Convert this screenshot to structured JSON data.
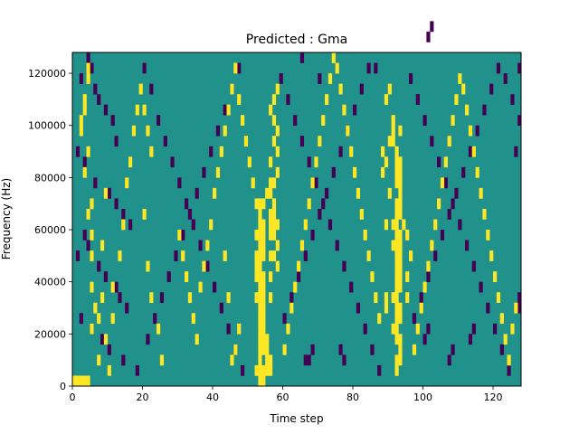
{
  "chart_data": {
    "type": "heatmap",
    "title": "Predicted : Gma",
    "xlabel": "Time step",
    "ylabel": "Frequency (Hz)",
    "xlim": [
      0,
      128
    ],
    "ylim": [
      0,
      128000
    ],
    "xticks": [
      0,
      20,
      40,
      60,
      80,
      100,
      120
    ],
    "yticks": [
      0,
      20000,
      40000,
      60000,
      80000,
      100000,
      120000
    ],
    "grid": false,
    "legend": "none",
    "colors": {
      "background": "#21918c",
      "low": "#440154",
      "high": "#fde725"
    },
    "cell_width_steps": 1,
    "cell_height_hz": 4000,
    "high_cells": [
      [
        0,
        0
      ],
      [
        1,
        0
      ],
      [
        2,
        0
      ],
      [
        3,
        0
      ],
      [
        4,
        0
      ],
      [
        53,
        0
      ],
      [
        54,
        0
      ],
      [
        52,
        1
      ],
      [
        53,
        1
      ],
      [
        54,
        1
      ],
      [
        55,
        1
      ],
      [
        56,
        1
      ],
      [
        56,
        2
      ],
      [
        55,
        2
      ],
      [
        53,
        2
      ],
      [
        53,
        3
      ],
      [
        54,
        3
      ],
      [
        55,
        3
      ],
      [
        53,
        4
      ],
      [
        54,
        4
      ],
      [
        55,
        4
      ],
      [
        53,
        5
      ],
      [
        54,
        5
      ],
      [
        53,
        6
      ],
      [
        54,
        6
      ],
      [
        53,
        7
      ],
      [
        54,
        7
      ],
      [
        52,
        8
      ],
      [
        53,
        8
      ],
      [
        54,
        8
      ],
      [
        53,
        9
      ],
      [
        54,
        9
      ],
      [
        52,
        10
      ],
      [
        53,
        10
      ],
      [
        54,
        10
      ],
      [
        52,
        11
      ],
      [
        53,
        11
      ],
      [
        52,
        12
      ],
      [
        53,
        12
      ],
      [
        53,
        13
      ],
      [
        54,
        13
      ],
      [
        52,
        14
      ],
      [
        53,
        14
      ],
      [
        54,
        14
      ],
      [
        53,
        15
      ],
      [
        54,
        15
      ],
      [
        53,
        16
      ],
      [
        52,
        17
      ],
      [
        53,
        17
      ],
      [
        54,
        17
      ],
      [
        56,
        14
      ],
      [
        57,
        14
      ],
      [
        56,
        15
      ],
      [
        57,
        15
      ],
      [
        58,
        15
      ],
      [
        56,
        16
      ],
      [
        57,
        16
      ],
      [
        54,
        12
      ],
      [
        56,
        12
      ],
      [
        55,
        18
      ],
      [
        56,
        18
      ],
      [
        56,
        19
      ],
      [
        57,
        19
      ],
      [
        58,
        20
      ],
      [
        56,
        21
      ],
      [
        58,
        22
      ],
      [
        57,
        23
      ],
      [
        58,
        24
      ],
      [
        57,
        25
      ],
      [
        56,
        26
      ],
      [
        57,
        27
      ],
      [
        58,
        28
      ],
      [
        56,
        8
      ],
      [
        56,
        10
      ],
      [
        57,
        12
      ],
      [
        58,
        11
      ],
      [
        58,
        13
      ],
      [
        57,
        17
      ],
      [
        92,
        1
      ],
      [
        92,
        2
      ],
      [
        93,
        2
      ],
      [
        93,
        3
      ],
      [
        92,
        4
      ],
      [
        93,
        4
      ],
      [
        91,
        5
      ],
      [
        92,
        5
      ],
      [
        92,
        6
      ],
      [
        93,
        6
      ],
      [
        92,
        7
      ],
      [
        93,
        7
      ],
      [
        91,
        8
      ],
      [
        92,
        8
      ],
      [
        92,
        9
      ],
      [
        93,
        9
      ],
      [
        92,
        10
      ],
      [
        93,
        10
      ],
      [
        92,
        11
      ],
      [
        93,
        11
      ],
      [
        92,
        12
      ],
      [
        93,
        12
      ],
      [
        91,
        13
      ],
      [
        92,
        13
      ],
      [
        93,
        13
      ],
      [
        92,
        14
      ],
      [
        93,
        14
      ],
      [
        94,
        15
      ],
      [
        92,
        15
      ],
      [
        91,
        15
      ],
      [
        92,
        16
      ],
      [
        93,
        16
      ],
      [
        92,
        17
      ],
      [
        93,
        17
      ],
      [
        93,
        18
      ],
      [
        92,
        19
      ],
      [
        93,
        19
      ],
      [
        92,
        20
      ],
      [
        93,
        20
      ],
      [
        92,
        21
      ],
      [
        93,
        21
      ],
      [
        92,
        22
      ],
      [
        91,
        23
      ],
      [
        91,
        24
      ],
      [
        91,
        25
      ],
      [
        89,
        27
      ],
      [
        90,
        28
      ],
      [
        89,
        7
      ],
      [
        89,
        8
      ],
      [
        88,
        20
      ],
      [
        89,
        21
      ],
      [
        88,
        22
      ],
      [
        90,
        23
      ],
      [
        93,
        24
      ],
      [
        89,
        15
      ],
      [
        90,
        18
      ],
      [
        95,
        14
      ],
      [
        96,
        12
      ],
      [
        95,
        10
      ],
      [
        95,
        8
      ],
      [
        4,
        29
      ],
      [
        4,
        30
      ],
      [
        3,
        27
      ],
      [
        2,
        25
      ],
      [
        2,
        24
      ],
      [
        3,
        26
      ],
      [
        4,
        22
      ],
      [
        3,
        20
      ],
      [
        5,
        17
      ],
      [
        4,
        16
      ],
      [
        5,
        14
      ],
      [
        5,
        12
      ],
      [
        5,
        9
      ],
      [
        6,
        7
      ],
      [
        5,
        5
      ],
      [
        7,
        6
      ],
      [
        8,
        8
      ],
      [
        7,
        2
      ],
      [
        10,
        1
      ],
      [
        9,
        4
      ],
      [
        8,
        13
      ],
      [
        9,
        18
      ],
      [
        11,
        6
      ],
      [
        11,
        9
      ],
      [
        13,
        12
      ],
      [
        14,
        15
      ],
      [
        15,
        19
      ],
      [
        16,
        21
      ],
      [
        17,
        24
      ],
      [
        18,
        26
      ],
      [
        19,
        28
      ],
      [
        20,
        26
      ],
      [
        21,
        24
      ],
      [
        22,
        22
      ],
      [
        20,
        16
      ],
      [
        21,
        11
      ],
      [
        22,
        8
      ],
      [
        24,
        5
      ],
      [
        25,
        2
      ],
      [
        30,
        14
      ],
      [
        31,
        12
      ],
      [
        32,
        10
      ],
      [
        33,
        8
      ],
      [
        34,
        6
      ],
      [
        35,
        4
      ],
      [
        36,
        9
      ],
      [
        37,
        11
      ],
      [
        38,
        13
      ],
      [
        39,
        15
      ],
      [
        40,
        18
      ],
      [
        41,
        20
      ],
      [
        42,
        22
      ],
      [
        43,
        24
      ],
      [
        44,
        26
      ],
      [
        45,
        28
      ],
      [
        46,
        30
      ],
      [
        47,
        27
      ],
      [
        48,
        25
      ],
      [
        49,
        23
      ],
      [
        50,
        21
      ],
      [
        51,
        19
      ],
      [
        45,
        2
      ],
      [
        46,
        3
      ],
      [
        47,
        5
      ],
      [
        44,
        8
      ],
      [
        43,
        12
      ],
      [
        60,
        3
      ],
      [
        61,
        5
      ],
      [
        62,
        7
      ],
      [
        63,
        9
      ],
      [
        64,
        11
      ],
      [
        65,
        13
      ],
      [
        66,
        15
      ],
      [
        67,
        17
      ],
      [
        68,
        19
      ],
      [
        69,
        21
      ],
      [
        70,
        23
      ],
      [
        71,
        25
      ],
      [
        72,
        27
      ],
      [
        73,
        29
      ],
      [
        74,
        31
      ],
      [
        75,
        30
      ],
      [
        76,
        28
      ],
      [
        77,
        26
      ],
      [
        78,
        24
      ],
      [
        79,
        22
      ],
      [
        80,
        20
      ],
      [
        81,
        18
      ],
      [
        82,
        16
      ],
      [
        83,
        14
      ],
      [
        84,
        12
      ],
      [
        85,
        10
      ],
      [
        86,
        8
      ],
      [
        87,
        6
      ],
      [
        97,
        3
      ],
      [
        98,
        5
      ],
      [
        99,
        7
      ],
      [
        100,
        9
      ],
      [
        101,
        11
      ],
      [
        102,
        13
      ],
      [
        103,
        15
      ],
      [
        104,
        17
      ],
      [
        105,
        19
      ],
      [
        106,
        21
      ],
      [
        107,
        23
      ],
      [
        108,
        25
      ],
      [
        109,
        27
      ],
      [
        110,
        29
      ],
      [
        111,
        28
      ],
      [
        112,
        26
      ],
      [
        113,
        24
      ],
      [
        114,
        22
      ],
      [
        115,
        20
      ],
      [
        116,
        18
      ],
      [
        117,
        16
      ],
      [
        118,
        14
      ],
      [
        119,
        12
      ],
      [
        120,
        10
      ],
      [
        121,
        8
      ],
      [
        122,
        6
      ],
      [
        123,
        4
      ],
      [
        124,
        2
      ],
      [
        125,
        5
      ],
      [
        126,
        7
      ]
    ],
    "low_cells": [
      [
        4,
        31
      ],
      [
        5,
        30
      ],
      [
        2,
        29
      ],
      [
        6,
        28
      ],
      [
        7,
        27
      ],
      [
        9,
        26
      ],
      [
        11,
        25
      ],
      [
        12,
        23
      ],
      [
        1,
        22
      ],
      [
        3,
        21
      ],
      [
        6,
        19
      ],
      [
        10,
        18
      ],
      [
        12,
        17
      ],
      [
        14,
        16
      ],
      [
        16,
        15
      ],
      [
        3,
        14
      ],
      [
        4,
        13
      ],
      [
        1,
        12
      ],
      [
        7,
        11
      ],
      [
        9,
        10
      ],
      [
        12,
        9
      ],
      [
        13,
        8
      ],
      [
        15,
        7
      ],
      [
        2,
        6
      ],
      [
        5,
        5
      ],
      [
        8,
        4
      ],
      [
        10,
        3
      ],
      [
        14,
        2
      ],
      [
        18,
        1
      ],
      [
        20,
        30
      ],
      [
        22,
        28
      ],
      [
        24,
        25
      ],
      [
        26,
        23
      ],
      [
        28,
        21
      ],
      [
        30,
        19
      ],
      [
        32,
        17
      ],
      [
        34,
        15
      ],
      [
        36,
        13
      ],
      [
        38,
        11
      ],
      [
        40,
        9
      ],
      [
        42,
        7
      ],
      [
        44,
        5
      ],
      [
        46,
        3
      ],
      [
        48,
        1
      ],
      [
        21,
        4
      ],
      [
        23,
        6
      ],
      [
        25,
        8
      ],
      [
        27,
        10
      ],
      [
        29,
        12
      ],
      [
        31,
        14
      ],
      [
        33,
        16
      ],
      [
        35,
        18
      ],
      [
        37,
        20
      ],
      [
        39,
        22
      ],
      [
        41,
        24
      ],
      [
        43,
        26
      ],
      [
        45,
        28
      ],
      [
        47,
        30
      ],
      [
        59,
        29
      ],
      [
        61,
        27
      ],
      [
        63,
        25
      ],
      [
        65,
        23
      ],
      [
        67,
        21
      ],
      [
        69,
        19
      ],
      [
        71,
        17
      ],
      [
        73,
        15
      ],
      [
        75,
        13
      ],
      [
        77,
        11
      ],
      [
        79,
        9
      ],
      [
        81,
        7
      ],
      [
        83,
        5
      ],
      [
        85,
        3
      ],
      [
        87,
        1
      ],
      [
        60,
        6
      ],
      [
        62,
        8
      ],
      [
        64,
        10
      ],
      [
        66,
        12
      ],
      [
        68,
        14
      ],
      [
        70,
        16
      ],
      [
        72,
        18
      ],
      [
        74,
        20
      ],
      [
        76,
        22
      ],
      [
        78,
        24
      ],
      [
        80,
        26
      ],
      [
        82,
        28
      ],
      [
        84,
        30
      ],
      [
        96,
        29
      ],
      [
        98,
        27
      ],
      [
        100,
        25
      ],
      [
        102,
        23
      ],
      [
        104,
        21
      ],
      [
        106,
        19
      ],
      [
        108,
        17
      ],
      [
        110,
        15
      ],
      [
        112,
        13
      ],
      [
        114,
        11
      ],
      [
        116,
        9
      ],
      [
        118,
        7
      ],
      [
        120,
        5
      ],
      [
        122,
        3
      ],
      [
        124,
        1
      ],
      [
        97,
        6
      ],
      [
        99,
        8
      ],
      [
        101,
        10
      ],
      [
        103,
        12
      ],
      [
        105,
        14
      ],
      [
        107,
        16
      ],
      [
        109,
        18
      ],
      [
        111,
        20
      ],
      [
        113,
        22
      ],
      [
        115,
        24
      ],
      [
        117,
        26
      ],
      [
        119,
        28
      ],
      [
        121,
        30
      ],
      [
        123,
        29
      ],
      [
        125,
        27
      ],
      [
        127,
        25
      ],
      [
        66,
        2
      ],
      [
        67,
        2
      ],
      [
        68,
        3
      ],
      [
        76,
        3
      ],
      [
        77,
        2
      ],
      [
        100,
        4
      ],
      [
        101,
        5
      ],
      [
        107,
        2
      ],
      [
        108,
        3
      ],
      [
        113,
        4
      ],
      [
        114,
        5
      ],
      [
        127,
        7
      ],
      [
        127,
        8
      ],
      [
        127,
        30
      ],
      [
        126,
        22
      ],
      [
        101,
        33
      ],
      [
        102,
        34
      ],
      [
        86,
        30
      ],
      [
        70,
        29
      ],
      [
        65,
        31
      ]
    ]
  }
}
